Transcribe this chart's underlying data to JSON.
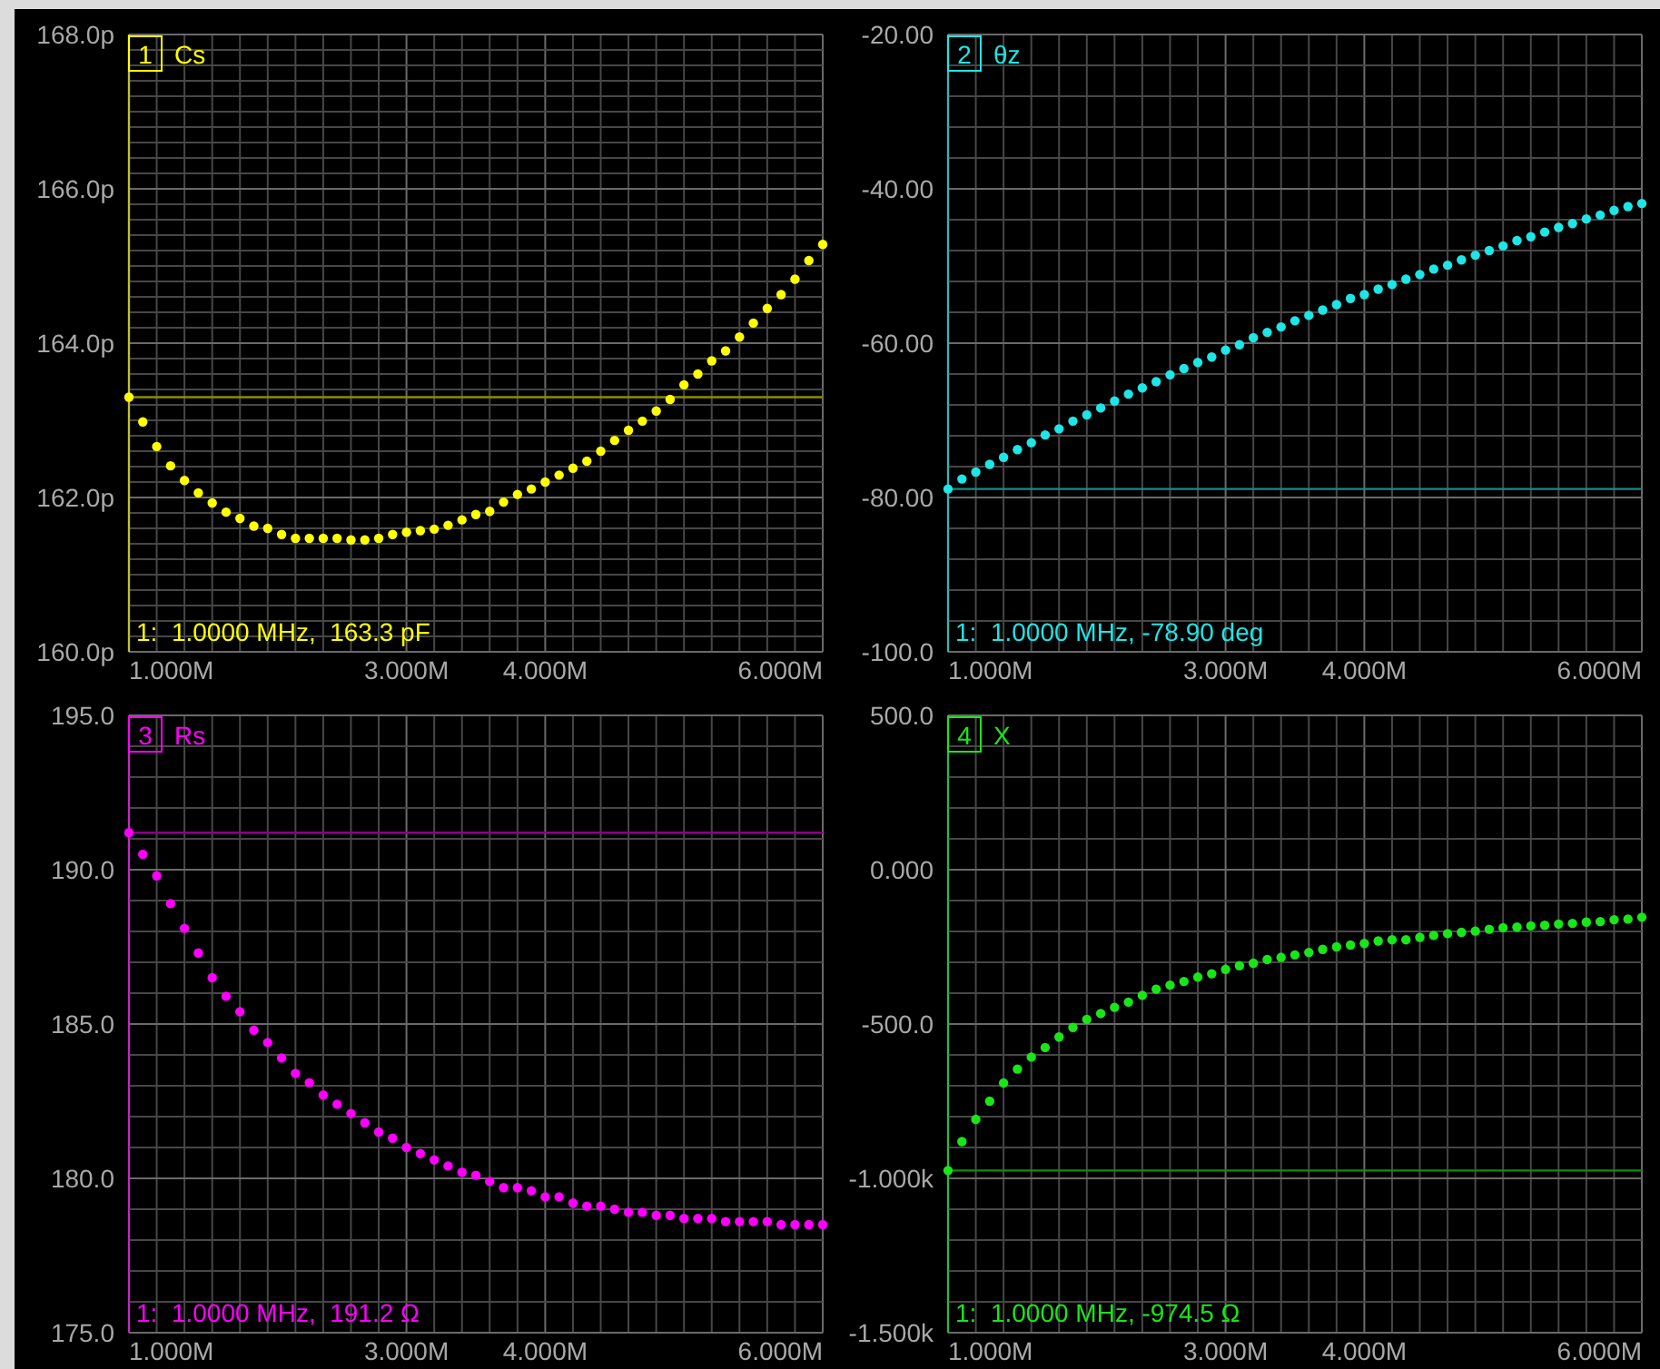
{
  "chart_data": [
    {
      "type": "scatter",
      "title": "Cs",
      "annotations": [
        "1",
        "1:  1.0000 MHz,  163.3 pF"
      ],
      "marker": "circle",
      "grid": true,
      "x": [
        1,
        1.1,
        1.2,
        1.3,
        1.4,
        1.5,
        1.6,
        1.7,
        1.8,
        1.9,
        2,
        2.1,
        2.2,
        2.3,
        2.4,
        2.5,
        2.6,
        2.7,
        2.8,
        2.9,
        3,
        3.1,
        3.2,
        3.3,
        3.4,
        3.5,
        3.6,
        3.7,
        3.8,
        3.9,
        4,
        4.1,
        4.2,
        4.3,
        4.4,
        4.5,
        4.6,
        4.7,
        4.8,
        4.9,
        5,
        5.1,
        5.2,
        5.3,
        5.4,
        5.5,
        5.6,
        5.7,
        5.8,
        5.9,
        6
      ],
      "series": [
        {
          "color": "#ffff00",
          "values": [
            163.3,
            162.98,
            162.66,
            162.41,
            162.22,
            162.06,
            161.93,
            161.81,
            161.73,
            161.63,
            161.6,
            161.52,
            161.47,
            161.47,
            161.47,
            161.47,
            161.45,
            161.45,
            161.47,
            161.52,
            161.55,
            161.57,
            161.59,
            161.64,
            161.71,
            161.78,
            161.82,
            161.94,
            162.04,
            162.11,
            162.2,
            162.29,
            162.38,
            162.47,
            162.6,
            162.74,
            162.87,
            162.99,
            163.12,
            163.27,
            163.46,
            163.6,
            163.77,
            163.9,
            164.08,
            164.26,
            164.45,
            164.63,
            164.83,
            165.07,
            165.28
          ]
        }
      ],
      "ref_lines": [
        {
          "axis": "y",
          "value": 163.3,
          "color": "#8c8c00"
        }
      ],
      "xlim": [
        1,
        6
      ],
      "xticks": [
        {
          "value": 1,
          "label": "1.000M"
        },
        {
          "value": 1.2,
          "label": null
        },
        {
          "value": 1.4,
          "label": null
        },
        {
          "value": 1.6,
          "label": null
        },
        {
          "value": 1.8,
          "label": null
        },
        {
          "value": 2,
          "label": null
        },
        {
          "value": 2.2,
          "label": null
        },
        {
          "value": 2.4,
          "label": null
        },
        {
          "value": 2.6,
          "label": null
        },
        {
          "value": 2.8,
          "label": null
        },
        {
          "value": 3,
          "label": "3.000M"
        },
        {
          "value": 3.2,
          "label": null
        },
        {
          "value": 3.4,
          "label": null
        },
        {
          "value": 3.6,
          "label": null
        },
        {
          "value": 3.8,
          "label": null
        },
        {
          "value": 4,
          "label": "4.000M"
        },
        {
          "value": 4.2,
          "label": null
        },
        {
          "value": 4.4,
          "label": null
        },
        {
          "value": 4.6,
          "label": null
        },
        {
          "value": 4.8,
          "label": null
        },
        {
          "value": 5,
          "label": null
        },
        {
          "value": 5.2,
          "label": null
        },
        {
          "value": 5.4,
          "label": null
        },
        {
          "value": 5.6,
          "label": null
        },
        {
          "value": 5.8,
          "label": null
        },
        {
          "value": 6,
          "label": "6.000M"
        }
      ],
      "ylim": [
        160,
        168
      ],
      "yticks": [
        {
          "value": 160,
          "label": "160.0p"
        },
        {
          "value": 160.2,
          "label": null
        },
        {
          "value": 160.4,
          "label": null
        },
        {
          "value": 160.6,
          "label": null
        },
        {
          "value": 160.8,
          "label": null
        },
        {
          "value": 161,
          "label": null
        },
        {
          "value": 161.2,
          "label": null
        },
        {
          "value": 161.4,
          "label": null
        },
        {
          "value": 161.6,
          "label": null
        },
        {
          "value": 161.8,
          "label": null
        },
        {
          "value": 162,
          "label": "162.0p"
        },
        {
          "value": 162.2,
          "label": null
        },
        {
          "value": 162.4,
          "label": null
        },
        {
          "value": 162.6,
          "label": null
        },
        {
          "value": 162.8,
          "label": null
        },
        {
          "value": 163,
          "label": null
        },
        {
          "value": 163.2,
          "label": null
        },
        {
          "value": 163.4,
          "label": null
        },
        {
          "value": 163.6,
          "label": null
        },
        {
          "value": 163.8,
          "label": null
        },
        {
          "value": 164,
          "label": "164.0p"
        },
        {
          "value": 164.2,
          "label": null
        },
        {
          "value": 164.4,
          "label": null
        },
        {
          "value": 164.6,
          "label": null
        },
        {
          "value": 164.8,
          "label": null
        },
        {
          "value": 165,
          "label": null
        },
        {
          "value": 165.2,
          "label": null
        },
        {
          "value": 165.4,
          "label": null
        },
        {
          "value": 165.6,
          "label": null
        },
        {
          "value": 165.8,
          "label": null
        },
        {
          "value": 166,
          "label": "166.0p"
        },
        {
          "value": 166.2,
          "label": null
        },
        {
          "value": 166.4,
          "label": null
        },
        {
          "value": 166.6,
          "label": null
        },
        {
          "value": 166.8,
          "label": null
        },
        {
          "value": 167,
          "label": null
        },
        {
          "value": 167.2,
          "label": null
        },
        {
          "value": 167.4,
          "label": null
        },
        {
          "value": 167.6,
          "label": null
        },
        {
          "value": 167.8,
          "label": null
        },
        {
          "value": 168,
          "label": "168.0p"
        }
      ]
    },
    {
      "type": "scatter",
      "title": "θz",
      "annotations": [
        "2",
        "1:  1.0000 MHz, -78.90 deg"
      ],
      "marker": "circle",
      "grid": true,
      "x": [
        1,
        1.1,
        1.2,
        1.3,
        1.4,
        1.5,
        1.6,
        1.7,
        1.8,
        1.9,
        2,
        2.1,
        2.2,
        2.3,
        2.4,
        2.5,
        2.6,
        2.7,
        2.8,
        2.9,
        3,
        3.1,
        3.2,
        3.3,
        3.4,
        3.5,
        3.6,
        3.7,
        3.8,
        3.9,
        4,
        4.1,
        4.2,
        4.3,
        4.4,
        4.5,
        4.6,
        4.7,
        4.8,
        4.9,
        5,
        5.1,
        5.2,
        5.3,
        5.4,
        5.5,
        5.6,
        5.7,
        5.8,
        5.9,
        6
      ],
      "series": [
        {
          "color": "#1ee6e6",
          "values": [
            -78.9,
            -77.6,
            -76.7,
            -75.7,
            -74.8,
            -73.8,
            -72.9,
            -71.9,
            -71.1,
            -70.1,
            -69.3,
            -68.4,
            -67.5,
            -66.6,
            -65.8,
            -65,
            -64.1,
            -63.3,
            -62.5,
            -61.8,
            -60.9,
            -60.2,
            -59.3,
            -58.6,
            -57.9,
            -57.1,
            -56.4,
            -55.7,
            -55,
            -54.2,
            -53.7,
            -53,
            -52.4,
            -51.7,
            -51.1,
            -50.4,
            -49.9,
            -49.2,
            -48.6,
            -48,
            -47.4,
            -46.7,
            -46.2,
            -45.6,
            -45,
            -44.5,
            -43.9,
            -43.4,
            -42.8,
            -42.3,
            -41.9
          ]
        }
      ],
      "ref_lines": [
        {
          "axis": "y",
          "value": -78.9,
          "color": "#138c8c"
        }
      ],
      "xlim": [
        1,
        6
      ],
      "xticks": [
        {
          "value": 1,
          "label": "1.000M"
        },
        {
          "value": 1.2,
          "label": null
        },
        {
          "value": 1.4,
          "label": null
        },
        {
          "value": 1.6,
          "label": null
        },
        {
          "value": 1.8,
          "label": null
        },
        {
          "value": 2,
          "label": null
        },
        {
          "value": 2.2,
          "label": null
        },
        {
          "value": 2.4,
          "label": null
        },
        {
          "value": 2.6,
          "label": null
        },
        {
          "value": 2.8,
          "label": null
        },
        {
          "value": 3,
          "label": "3.000M"
        },
        {
          "value": 3.2,
          "label": null
        },
        {
          "value": 3.4,
          "label": null
        },
        {
          "value": 3.6,
          "label": null
        },
        {
          "value": 3.8,
          "label": null
        },
        {
          "value": 4,
          "label": "4.000M"
        },
        {
          "value": 4.2,
          "label": null
        },
        {
          "value": 4.4,
          "label": null
        },
        {
          "value": 4.6,
          "label": null
        },
        {
          "value": 4.8,
          "label": null
        },
        {
          "value": 5,
          "label": null
        },
        {
          "value": 5.2,
          "label": null
        },
        {
          "value": 5.4,
          "label": null
        },
        {
          "value": 5.6,
          "label": null
        },
        {
          "value": 5.8,
          "label": null
        },
        {
          "value": 6,
          "label": "6.000M"
        }
      ],
      "ylim": [
        -100,
        -20
      ],
      "yticks": [
        {
          "value": -100,
          "label": "-100.0"
        },
        {
          "value": -96,
          "label": null
        },
        {
          "value": -92,
          "label": null
        },
        {
          "value": -88,
          "label": null
        },
        {
          "value": -84,
          "label": null
        },
        {
          "value": -80,
          "label": "-80.00"
        },
        {
          "value": -76,
          "label": null
        },
        {
          "value": -72,
          "label": null
        },
        {
          "value": -68,
          "label": null
        },
        {
          "value": -64,
          "label": null
        },
        {
          "value": -60,
          "label": "-60.00"
        },
        {
          "value": -56,
          "label": null
        },
        {
          "value": -52,
          "label": null
        },
        {
          "value": -48,
          "label": null
        },
        {
          "value": -44,
          "label": null
        },
        {
          "value": -40,
          "label": "-40.00"
        },
        {
          "value": -36,
          "label": null
        },
        {
          "value": -32,
          "label": null
        },
        {
          "value": -28,
          "label": null
        },
        {
          "value": -24,
          "label": null
        },
        {
          "value": -20,
          "label": "-20.00"
        }
      ]
    },
    {
      "type": "scatter",
      "title": "Rs",
      "annotations": [
        "3",
        "1:  1.0000 MHz,  191.2 Ω"
      ],
      "marker": "circle",
      "grid": true,
      "x": [
        1,
        1.1,
        1.2,
        1.3,
        1.4,
        1.5,
        1.6,
        1.7,
        1.8,
        1.9,
        2,
        2.1,
        2.2,
        2.3,
        2.4,
        2.5,
        2.6,
        2.7,
        2.8,
        2.9,
        3,
        3.1,
        3.2,
        3.3,
        3.4,
        3.5,
        3.6,
        3.7,
        3.8,
        3.9,
        4,
        4.1,
        4.2,
        4.3,
        4.4,
        4.5,
        4.6,
        4.7,
        4.8,
        4.9,
        5,
        5.1,
        5.2,
        5.3,
        5.4,
        5.5,
        5.6,
        5.7,
        5.8,
        5.9,
        6
      ],
      "series": [
        {
          "color": "#ff00ff",
          "values": [
            191.2,
            190.5,
            189.8,
            188.9,
            188.1,
            187.3,
            186.5,
            185.9,
            185.4,
            184.8,
            184.4,
            183.9,
            183.4,
            183.1,
            182.7,
            182.4,
            182.1,
            181.8,
            181.5,
            181.3,
            181,
            180.8,
            180.6,
            180.4,
            180.2,
            180.1,
            179.9,
            179.7,
            179.7,
            179.6,
            179.4,
            179.4,
            179.2,
            179.1,
            179.1,
            179,
            178.9,
            178.9,
            178.8,
            178.8,
            178.7,
            178.7,
            178.7,
            178.6,
            178.6,
            178.6,
            178.6,
            178.5,
            178.5,
            178.5,
            178.5
          ]
        }
      ],
      "ref_lines": [
        {
          "axis": "y",
          "value": 191.2,
          "color": "#8c008c"
        }
      ],
      "xlim": [
        1,
        6
      ],
      "xticks": [
        {
          "value": 1,
          "label": "1.000M"
        },
        {
          "value": 1.2,
          "label": null
        },
        {
          "value": 1.4,
          "label": null
        },
        {
          "value": 1.6,
          "label": null
        },
        {
          "value": 1.8,
          "label": null
        },
        {
          "value": 2,
          "label": null
        },
        {
          "value": 2.2,
          "label": null
        },
        {
          "value": 2.4,
          "label": null
        },
        {
          "value": 2.6,
          "label": null
        },
        {
          "value": 2.8,
          "label": null
        },
        {
          "value": 3,
          "label": "3.000M"
        },
        {
          "value": 3.2,
          "label": null
        },
        {
          "value": 3.4,
          "label": null
        },
        {
          "value": 3.6,
          "label": null
        },
        {
          "value": 3.8,
          "label": null
        },
        {
          "value": 4,
          "label": "4.000M"
        },
        {
          "value": 4.2,
          "label": null
        },
        {
          "value": 4.4,
          "label": null
        },
        {
          "value": 4.6,
          "label": null
        },
        {
          "value": 4.8,
          "label": null
        },
        {
          "value": 5,
          "label": null
        },
        {
          "value": 5.2,
          "label": null
        },
        {
          "value": 5.4,
          "label": null
        },
        {
          "value": 5.6,
          "label": null
        },
        {
          "value": 5.8,
          "label": null
        },
        {
          "value": 6,
          "label": "6.000M"
        }
      ],
      "ylim": [
        175,
        195
      ],
      "yticks": [
        {
          "value": 175,
          "label": "175.0"
        },
        {
          "value": 176,
          "label": null
        },
        {
          "value": 177,
          "label": null
        },
        {
          "value": 178,
          "label": null
        },
        {
          "value": 179,
          "label": null
        },
        {
          "value": 180,
          "label": "180.0"
        },
        {
          "value": 181,
          "label": null
        },
        {
          "value": 182,
          "label": null
        },
        {
          "value": 183,
          "label": null
        },
        {
          "value": 184,
          "label": null
        },
        {
          "value": 185,
          "label": "185.0"
        },
        {
          "value": 186,
          "label": null
        },
        {
          "value": 187,
          "label": null
        },
        {
          "value": 188,
          "label": null
        },
        {
          "value": 189,
          "label": null
        },
        {
          "value": 190,
          "label": "190.0"
        },
        {
          "value": 191,
          "label": null
        },
        {
          "value": 192,
          "label": null
        },
        {
          "value": 193,
          "label": null
        },
        {
          "value": 194,
          "label": null
        },
        {
          "value": 195,
          "label": "195.0"
        }
      ]
    },
    {
      "type": "scatter",
      "title": "X",
      "annotations": [
        "4",
        "1:  1.0000 MHz, -974.5 Ω"
      ],
      "marker": "circle",
      "grid": true,
      "x": [
        1,
        1.1,
        1.2,
        1.3,
        1.4,
        1.5,
        1.6,
        1.7,
        1.8,
        1.9,
        2,
        2.1,
        2.2,
        2.3,
        2.4,
        2.5,
        2.6,
        2.7,
        2.8,
        2.9,
        3,
        3.1,
        3.2,
        3.3,
        3.4,
        3.5,
        3.6,
        3.7,
        3.8,
        3.9,
        4,
        4.1,
        4.2,
        4.3,
        4.4,
        4.5,
        4.6,
        4.7,
        4.8,
        4.9,
        5,
        5.1,
        5.2,
        5.3,
        5.4,
        5.5,
        5.6,
        5.7,
        5.8,
        5.9,
        6
      ],
      "series": [
        {
          "color": "#19e619",
          "values": [
            -974.5,
            -881,
            -809,
            -750,
            -691,
            -646,
            -607,
            -576,
            -542,
            -511,
            -485,
            -466,
            -446,
            -429,
            -407,
            -387,
            -374,
            -362,
            -348,
            -337,
            -323,
            -311,
            -303,
            -291,
            -284,
            -276,
            -268,
            -258,
            -250,
            -244,
            -239,
            -231,
            -227,
            -227,
            -219,
            -213,
            -207,
            -203,
            -199,
            -193,
            -188,
            -186,
            -182,
            -180,
            -176,
            -174,
            -170,
            -168,
            -162,
            -160,
            -154
          ]
        }
      ],
      "ref_lines": [
        {
          "axis": "y",
          "value": -974.5,
          "color": "#138c13"
        }
      ],
      "xlim": [
        1,
        6
      ],
      "xticks": [
        {
          "value": 1,
          "label": "1.000M"
        },
        {
          "value": 1.2,
          "label": null
        },
        {
          "value": 1.4,
          "label": null
        },
        {
          "value": 1.6,
          "label": null
        },
        {
          "value": 1.8,
          "label": null
        },
        {
          "value": 2,
          "label": null
        },
        {
          "value": 2.2,
          "label": null
        },
        {
          "value": 2.4,
          "label": null
        },
        {
          "value": 2.6,
          "label": null
        },
        {
          "value": 2.8,
          "label": null
        },
        {
          "value": 3,
          "label": "3.000M"
        },
        {
          "value": 3.2,
          "label": null
        },
        {
          "value": 3.4,
          "label": null
        },
        {
          "value": 3.6,
          "label": null
        },
        {
          "value": 3.8,
          "label": null
        },
        {
          "value": 4,
          "label": "4.000M"
        },
        {
          "value": 4.2,
          "label": null
        },
        {
          "value": 4.4,
          "label": null
        },
        {
          "value": 4.6,
          "label": null
        },
        {
          "value": 4.8,
          "label": null
        },
        {
          "value": 5,
          "label": null
        },
        {
          "value": 5.2,
          "label": null
        },
        {
          "value": 5.4,
          "label": null
        },
        {
          "value": 5.6,
          "label": null
        },
        {
          "value": 5.8,
          "label": null
        },
        {
          "value": 6,
          "label": "6.000M"
        }
      ],
      "ylim": [
        -1500,
        500
      ],
      "yticks": [
        {
          "value": -1500,
          "label": "-1.500k"
        },
        {
          "value": -1400,
          "label": null
        },
        {
          "value": -1300,
          "label": null
        },
        {
          "value": -1200,
          "label": null
        },
        {
          "value": -1100,
          "label": null
        },
        {
          "value": -1000,
          "label": "-1.000k"
        },
        {
          "value": -900,
          "label": null
        },
        {
          "value": -800,
          "label": null
        },
        {
          "value": -700,
          "label": null
        },
        {
          "value": -600,
          "label": null
        },
        {
          "value": -500,
          "label": "-500.0"
        },
        {
          "value": -400,
          "label": null
        },
        {
          "value": -300,
          "label": null
        },
        {
          "value": -200,
          "label": null
        },
        {
          "value": -100,
          "label": null
        },
        {
          "value": 0,
          "label": "0.000"
        },
        {
          "value": 100,
          "label": null
        },
        {
          "value": 200,
          "label": null
        },
        {
          "value": 300,
          "label": null
        },
        {
          "value": 400,
          "label": null
        },
        {
          "value": 500,
          "label": "500.0"
        }
      ]
    }
  ]
}
